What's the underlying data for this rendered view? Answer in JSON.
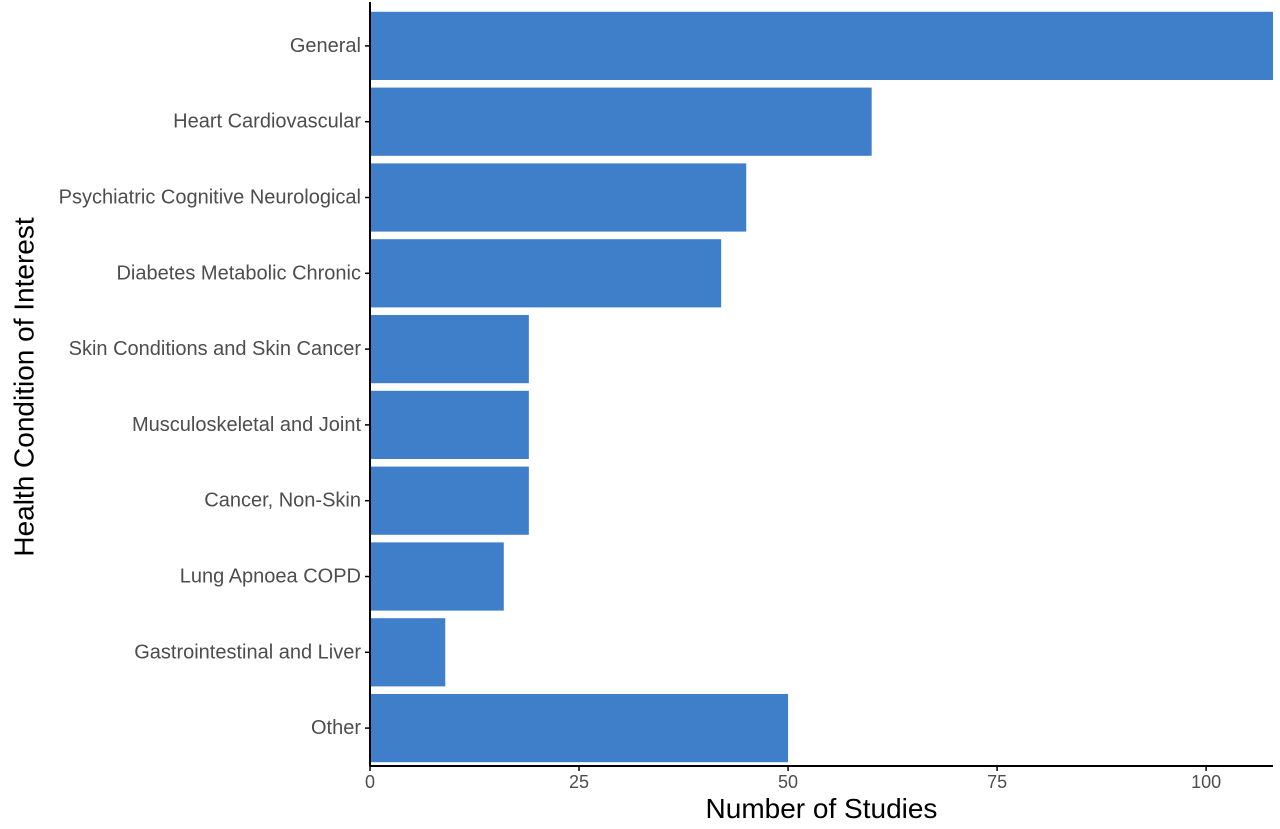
{
  "chart_data": {
    "type": "bar",
    "orientation": "horizontal",
    "title": "",
    "xlabel": "Number of Studies",
    "ylabel": "Health Condition of Interest",
    "categories": [
      "General",
      "Heart Cardiovascular",
      "Psychiatric Cognitive Neurological",
      "Diabetes Metabolic Chronic",
      "Skin Conditions and Skin Cancer",
      "Musculoskeletal and Joint",
      "Cancer, Non-Skin",
      "Lung Apnoea COPD",
      "Gastrointestinal and Liver",
      "Other"
    ],
    "values": [
      108,
      60,
      45,
      42,
      19,
      19,
      19,
      16,
      9,
      50
    ],
    "xlim": [
      0,
      108
    ],
    "xticks": [
      0,
      25,
      50,
      75,
      100
    ],
    "xtick_labels": [
      "0",
      "25",
      "50",
      "75",
      "100"
    ],
    "grid": false,
    "legend": "none",
    "bar_color": "#3f7ec8",
    "axis_color": "#000000"
  }
}
